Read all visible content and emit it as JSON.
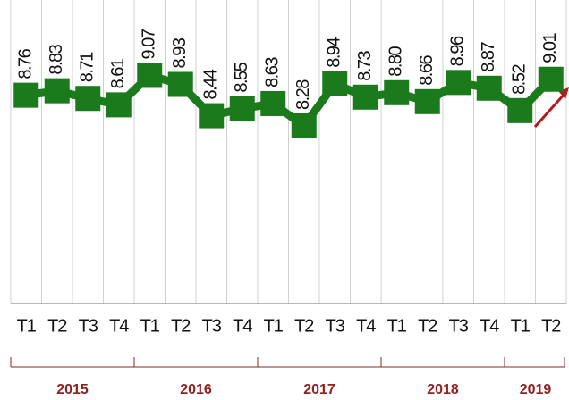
{
  "chart_data": {
    "type": "line",
    "categories": [
      "T1",
      "T2",
      "T3",
      "T4",
      "T1",
      "T2",
      "T3",
      "T4",
      "T1",
      "T2",
      "T3",
      "T4",
      "T1",
      "T2",
      "T3",
      "T4",
      "T1",
      "T2"
    ],
    "values": [
      8.76,
      8.83,
      8.71,
      8.61,
      9.07,
      8.93,
      8.44,
      8.55,
      8.63,
      8.28,
      8.94,
      8.73,
      8.8,
      8.66,
      8.96,
      8.87,
      8.52,
      9.01
    ],
    "value_labels": [
      "8.76",
      "8.83",
      "8.71",
      "8.61",
      "9.07",
      "8.93",
      "8.44",
      "8.55",
      "8.63",
      "8.28",
      "8.94",
      "8.73",
      "8.80",
      "8.66",
      "8.96",
      "8.87",
      "8.52",
      "9.01"
    ],
    "groups": [
      "2015",
      "2016",
      "2017",
      "2018",
      "2019"
    ],
    "group_sizes": [
      4,
      4,
      4,
      4,
      2
    ],
    "color": "#1b7a1b",
    "ylim": [
      5.5,
      10.25
    ]
  }
}
